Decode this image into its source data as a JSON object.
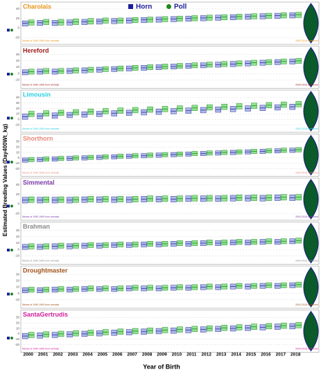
{
  "legend": [
    {
      "name": "Horn",
      "color": "#1c1c9c"
    },
    {
      "name": "Poll",
      "color": "#1a8a1a"
    }
  ],
  "x_label": "Year of Birth",
  "y_label": "Estimated Breeding Values (Day400Wt_kg)",
  "violin_label": "2000-2018 combined",
  "categories": [
    "2000",
    "2001",
    "2002",
    "2003",
    "2004",
    "2005",
    "2006",
    "2007",
    "2008",
    "2009",
    "2010",
    "2011",
    "2012",
    "2013",
    "2014",
    "2015",
    "2016",
    "2017",
    "2018"
  ],
  "chart_data": [
    {
      "type": "box",
      "title": "Charolais",
      "title_color": "#e8951a",
      "note": "Means of 1990-1999 born animals",
      "ylim": [
        -30,
        50
      ],
      "yticks": [
        -20,
        0,
        20,
        40
      ],
      "series": [
        {
          "color": "#aebbe8",
          "edge": "#2a2aa0",
          "q1": [
            4,
            5,
            5,
            6,
            7,
            8,
            9,
            10,
            11,
            12,
            13,
            14,
            15,
            16,
            17,
            18,
            19,
            20,
            21
          ],
          "median": [
            10,
            11,
            11,
            12,
            13,
            14,
            15,
            16,
            17,
            18,
            19,
            20,
            21,
            22,
            23,
            24,
            25,
            26,
            27
          ],
          "q3": [
            15,
            16,
            16,
            17,
            18,
            19,
            20,
            21,
            22,
            23,
            24,
            25,
            26,
            27,
            28,
            29,
            30,
            31,
            32
          ]
        },
        {
          "color": "#93e393",
          "edge": "#1a8a1a",
          "q1": [
            6,
            7,
            6,
            7,
            8,
            10,
            10,
            11,
            12,
            13,
            14,
            15,
            16,
            17,
            18,
            19,
            20,
            21,
            22
          ],
          "median": [
            12,
            13,
            12,
            13,
            14,
            16,
            16,
            17,
            18,
            19,
            20,
            21,
            22,
            23,
            24,
            25,
            26,
            27,
            28
          ],
          "q3": [
            17,
            18,
            18,
            19,
            20,
            21,
            21,
            22,
            23,
            24,
            25,
            26,
            27,
            28,
            29,
            30,
            31,
            32,
            33
          ]
        }
      ]
    },
    {
      "type": "box",
      "title": "Hereford",
      "title_color": "#9c1a1a",
      "note": "Means of 1992-1999 born animals",
      "ylim": [
        -20,
        40
      ],
      "yticks": [
        -10,
        0,
        10,
        20,
        30
      ],
      "series": [
        {
          "color": "#aebbe8",
          "edge": "#2a2aa0",
          "q1": [
            -2,
            -1,
            -1,
            0,
            1,
            2,
            3,
            4,
            5,
            6,
            7,
            8,
            9,
            10,
            11,
            12,
            13,
            14,
            15
          ],
          "median": [
            2,
            3,
            3,
            4,
            5,
            6,
            7,
            8,
            9,
            10,
            11,
            12,
            13,
            14,
            15,
            16,
            17,
            18,
            19
          ],
          "q3": [
            6,
            7,
            7,
            8,
            9,
            10,
            11,
            12,
            13,
            14,
            15,
            16,
            17,
            18,
            19,
            20,
            21,
            22,
            23
          ]
        },
        {
          "color": "#93e393",
          "edge": "#1a8a1a",
          "q1": [
            -1,
            0,
            0,
            1,
            2,
            3,
            4,
            5,
            6,
            7,
            8,
            9,
            10,
            11,
            12,
            13,
            14,
            15,
            16
          ],
          "median": [
            3,
            4,
            4,
            5,
            6,
            7,
            8,
            9,
            10,
            11,
            12,
            13,
            14,
            15,
            16,
            17,
            18,
            19,
            20
          ],
          "q3": [
            7,
            8,
            8,
            9,
            10,
            11,
            12,
            13,
            14,
            15,
            16,
            17,
            18,
            19,
            20,
            21,
            22,
            23,
            24
          ]
        }
      ]
    },
    {
      "type": "box",
      "title": "Limousin",
      "title_color": "#2ad0e0",
      "note": "Means of 1990-1999 born animals",
      "ylim": [
        -20,
        50
      ],
      "yticks": [
        -10,
        0,
        10,
        20,
        30,
        40
      ],
      "series": [
        {
          "color": "#aebbe8",
          "edge": "#2a2aa0",
          "q1": [
            0,
            1,
            2,
            3,
            4,
            5,
            6,
            7,
            8,
            9,
            10,
            11,
            12,
            13,
            14,
            15,
            16,
            17,
            18
          ],
          "median": [
            5,
            6,
            7,
            8,
            9,
            10,
            11,
            12,
            13,
            14,
            15,
            16,
            17,
            18,
            19,
            20,
            21,
            22,
            23
          ],
          "q3": [
            10,
            11,
            12,
            13,
            14,
            15,
            16,
            17,
            18,
            19,
            20,
            21,
            22,
            23,
            24,
            25,
            26,
            27,
            28
          ]
        },
        {
          "color": "#93e393",
          "edge": "#1a8a1a",
          "q1": [
            5,
            6,
            7,
            8,
            9,
            10,
            11,
            12,
            13,
            14,
            15,
            16,
            17,
            18,
            19,
            20,
            21,
            22,
            23
          ],
          "median": [
            10,
            11,
            12,
            13,
            14,
            15,
            16,
            17,
            18,
            19,
            20,
            21,
            22,
            23,
            24,
            25,
            26,
            27,
            28
          ],
          "q3": [
            15,
            16,
            17,
            18,
            19,
            20,
            21,
            22,
            23,
            24,
            25,
            26,
            27,
            28,
            29,
            30,
            31,
            32,
            33
          ]
        }
      ]
    },
    {
      "type": "box",
      "title": "Shorthorn",
      "title_color": "#e88a7a",
      "note": "Means of 1990-1999 born animals",
      "ylim": [
        -30,
        40
      ],
      "yticks": [
        -20,
        -10,
        0,
        10,
        20,
        30
      ],
      "series": [
        {
          "color": "#aebbe8",
          "edge": "#2a2aa0",
          "q1": [
            -8,
            -7,
            -6,
            -5,
            -4,
            -3,
            -2,
            -1,
            0,
            1,
            2,
            3,
            4,
            5,
            6,
            7,
            8,
            9,
            10
          ],
          "median": [
            -4,
            -3,
            -2,
            -1,
            0,
            1,
            2,
            3,
            4,
            5,
            6,
            7,
            8,
            9,
            10,
            11,
            12,
            13,
            14
          ],
          "q3": [
            0,
            1,
            2,
            3,
            4,
            5,
            6,
            7,
            8,
            9,
            10,
            11,
            12,
            13,
            14,
            15,
            16,
            17,
            18
          ]
        },
        {
          "color": "#93e393",
          "edge": "#1a8a1a",
          "q1": [
            -7,
            -6,
            -5,
            -4,
            -3,
            -2,
            -1,
            0,
            1,
            2,
            3,
            4,
            5,
            6,
            7,
            8,
            9,
            10,
            11
          ],
          "median": [
            -3,
            -2,
            -1,
            0,
            1,
            2,
            3,
            4,
            5,
            6,
            7,
            8,
            9,
            10,
            11,
            12,
            13,
            14,
            15
          ],
          "q3": [
            1,
            2,
            3,
            4,
            5,
            6,
            7,
            8,
            9,
            10,
            11,
            12,
            13,
            14,
            15,
            16,
            17,
            18,
            19
          ]
        }
      ]
    },
    {
      "type": "box",
      "title": "Simmental",
      "title_color": "#7a3aa8",
      "note": "Means of 1990-1999 born animals",
      "ylim": [
        -30,
        50
      ],
      "yticks": [
        -20,
        0,
        20,
        40
      ],
      "series": [
        {
          "color": "#aebbe8",
          "edge": "#2a2aa0",
          "q1": [
            2,
            2,
            2,
            2,
            3,
            3,
            3,
            3,
            4,
            4,
            4,
            5,
            5,
            5,
            6,
            6,
            6,
            7,
            7
          ],
          "median": [
            8,
            8,
            8,
            8,
            9,
            9,
            9,
            9,
            10,
            10,
            10,
            11,
            11,
            11,
            12,
            12,
            12,
            13,
            13
          ],
          "q3": [
            14,
            14,
            14,
            14,
            15,
            15,
            15,
            15,
            16,
            16,
            16,
            17,
            17,
            17,
            18,
            18,
            18,
            19,
            19
          ]
        },
        {
          "color": "#93e393",
          "edge": "#1a8a1a",
          "q1": [
            3,
            3,
            3,
            3,
            4,
            4,
            4,
            4,
            5,
            5,
            5,
            6,
            6,
            6,
            7,
            7,
            7,
            8,
            8
          ],
          "median": [
            9,
            9,
            9,
            9,
            10,
            10,
            10,
            10,
            11,
            11,
            11,
            12,
            12,
            12,
            13,
            13,
            13,
            14,
            14
          ],
          "q3": [
            15,
            15,
            15,
            15,
            16,
            16,
            16,
            16,
            17,
            17,
            17,
            18,
            18,
            18,
            19,
            19,
            19,
            20,
            20
          ]
        }
      ]
    },
    {
      "type": "box",
      "title": "Brahman",
      "title_color": "#8a8a8a",
      "note": "Means of 1990-1999 born animals",
      "ylim": [
        -20,
        40
      ],
      "yticks": [
        -10,
        0,
        10,
        20,
        30
      ],
      "series": [
        {
          "color": "#aebbe8",
          "edge": "#2a2aa0",
          "q1": [
            0,
            0,
            1,
            1,
            2,
            2,
            3,
            3,
            4,
            4,
            5,
            5,
            6,
            6,
            7,
            7,
            8,
            8,
            9
          ],
          "median": [
            4,
            4,
            5,
            5,
            6,
            6,
            7,
            7,
            8,
            8,
            9,
            9,
            10,
            10,
            11,
            11,
            12,
            12,
            13
          ],
          "q3": [
            8,
            8,
            9,
            9,
            10,
            10,
            11,
            11,
            12,
            12,
            13,
            13,
            14,
            14,
            15,
            15,
            16,
            16,
            17
          ]
        },
        {
          "color": "#93e393",
          "edge": "#1a8a1a",
          "q1": [
            1,
            1,
            2,
            2,
            3,
            3,
            4,
            4,
            5,
            5,
            6,
            6,
            7,
            7,
            8,
            8,
            9,
            9,
            10
          ],
          "median": [
            5,
            5,
            6,
            6,
            7,
            7,
            8,
            8,
            9,
            9,
            10,
            10,
            11,
            11,
            12,
            12,
            13,
            13,
            14
          ],
          "q3": [
            9,
            9,
            10,
            10,
            11,
            11,
            12,
            12,
            13,
            13,
            14,
            14,
            15,
            15,
            16,
            16,
            17,
            17,
            18
          ]
        }
      ]
    },
    {
      "type": "box",
      "title": "Droughtmaster",
      "title_color": "#a0521a",
      "note": "Means of 1990-1999 born animals",
      "ylim": [
        -20,
        40
      ],
      "yticks": [
        -10,
        0,
        10,
        20,
        30
      ],
      "series": [
        {
          "color": "#aebbe8",
          "edge": "#2a2aa0",
          "q1": [
            1,
            1,
            2,
            2,
            3,
            3,
            3,
            4,
            4,
            4,
            5,
            5,
            6,
            6,
            7,
            7,
            8,
            8,
            9
          ],
          "median": [
            5,
            5,
            6,
            6,
            7,
            7,
            7,
            8,
            8,
            8,
            9,
            9,
            10,
            10,
            11,
            11,
            12,
            12,
            13
          ],
          "q3": [
            9,
            9,
            10,
            10,
            11,
            11,
            11,
            12,
            12,
            12,
            13,
            13,
            14,
            14,
            15,
            15,
            16,
            16,
            17
          ]
        },
        {
          "color": "#93e393",
          "edge": "#1a8a1a",
          "q1": [
            2,
            2,
            3,
            3,
            4,
            4,
            4,
            5,
            5,
            5,
            6,
            6,
            7,
            7,
            8,
            8,
            9,
            9,
            10
          ],
          "median": [
            6,
            6,
            7,
            7,
            8,
            8,
            8,
            9,
            9,
            9,
            10,
            10,
            11,
            11,
            12,
            12,
            13,
            13,
            14
          ],
          "q3": [
            10,
            10,
            11,
            11,
            12,
            12,
            12,
            13,
            13,
            13,
            14,
            14,
            15,
            15,
            16,
            16,
            17,
            17,
            18
          ]
        }
      ]
    },
    {
      "type": "box",
      "title": "SantaGertrudis",
      "title_color": "#d0209a",
      "note": "Means of 1990-1999 born animals",
      "ylim": [
        -30,
        40
      ],
      "yticks": [
        -20,
        -10,
        0,
        10,
        20,
        30
      ],
      "series": [
        {
          "color": "#aebbe8",
          "edge": "#2a2aa0",
          "q1": [
            -9,
            -8,
            -7,
            -6,
            -5,
            -4,
            -3,
            -2,
            -1,
            0,
            1,
            2,
            3,
            4,
            5,
            6,
            7,
            8,
            9
          ],
          "median": [
            -4,
            -3,
            -2,
            -1,
            0,
            1,
            2,
            3,
            4,
            5,
            6,
            7,
            8,
            9,
            10,
            11,
            12,
            13,
            14
          ],
          "q3": [
            1,
            2,
            3,
            4,
            5,
            6,
            7,
            8,
            9,
            10,
            11,
            12,
            13,
            14,
            15,
            16,
            17,
            18,
            19
          ]
        },
        {
          "color": "#93e393",
          "edge": "#1a8a1a",
          "q1": [
            -7,
            -6,
            -5,
            -4,
            -3,
            -2,
            -1,
            0,
            1,
            2,
            3,
            4,
            5,
            6,
            7,
            8,
            9,
            10,
            11
          ],
          "median": [
            -2,
            -1,
            0,
            1,
            2,
            3,
            4,
            5,
            6,
            7,
            8,
            9,
            10,
            11,
            12,
            13,
            14,
            15,
            16
          ],
          "q3": [
            3,
            4,
            5,
            6,
            7,
            8,
            9,
            10,
            11,
            12,
            13,
            14,
            15,
            16,
            17,
            18,
            19,
            20,
            21
          ]
        }
      ]
    }
  ]
}
